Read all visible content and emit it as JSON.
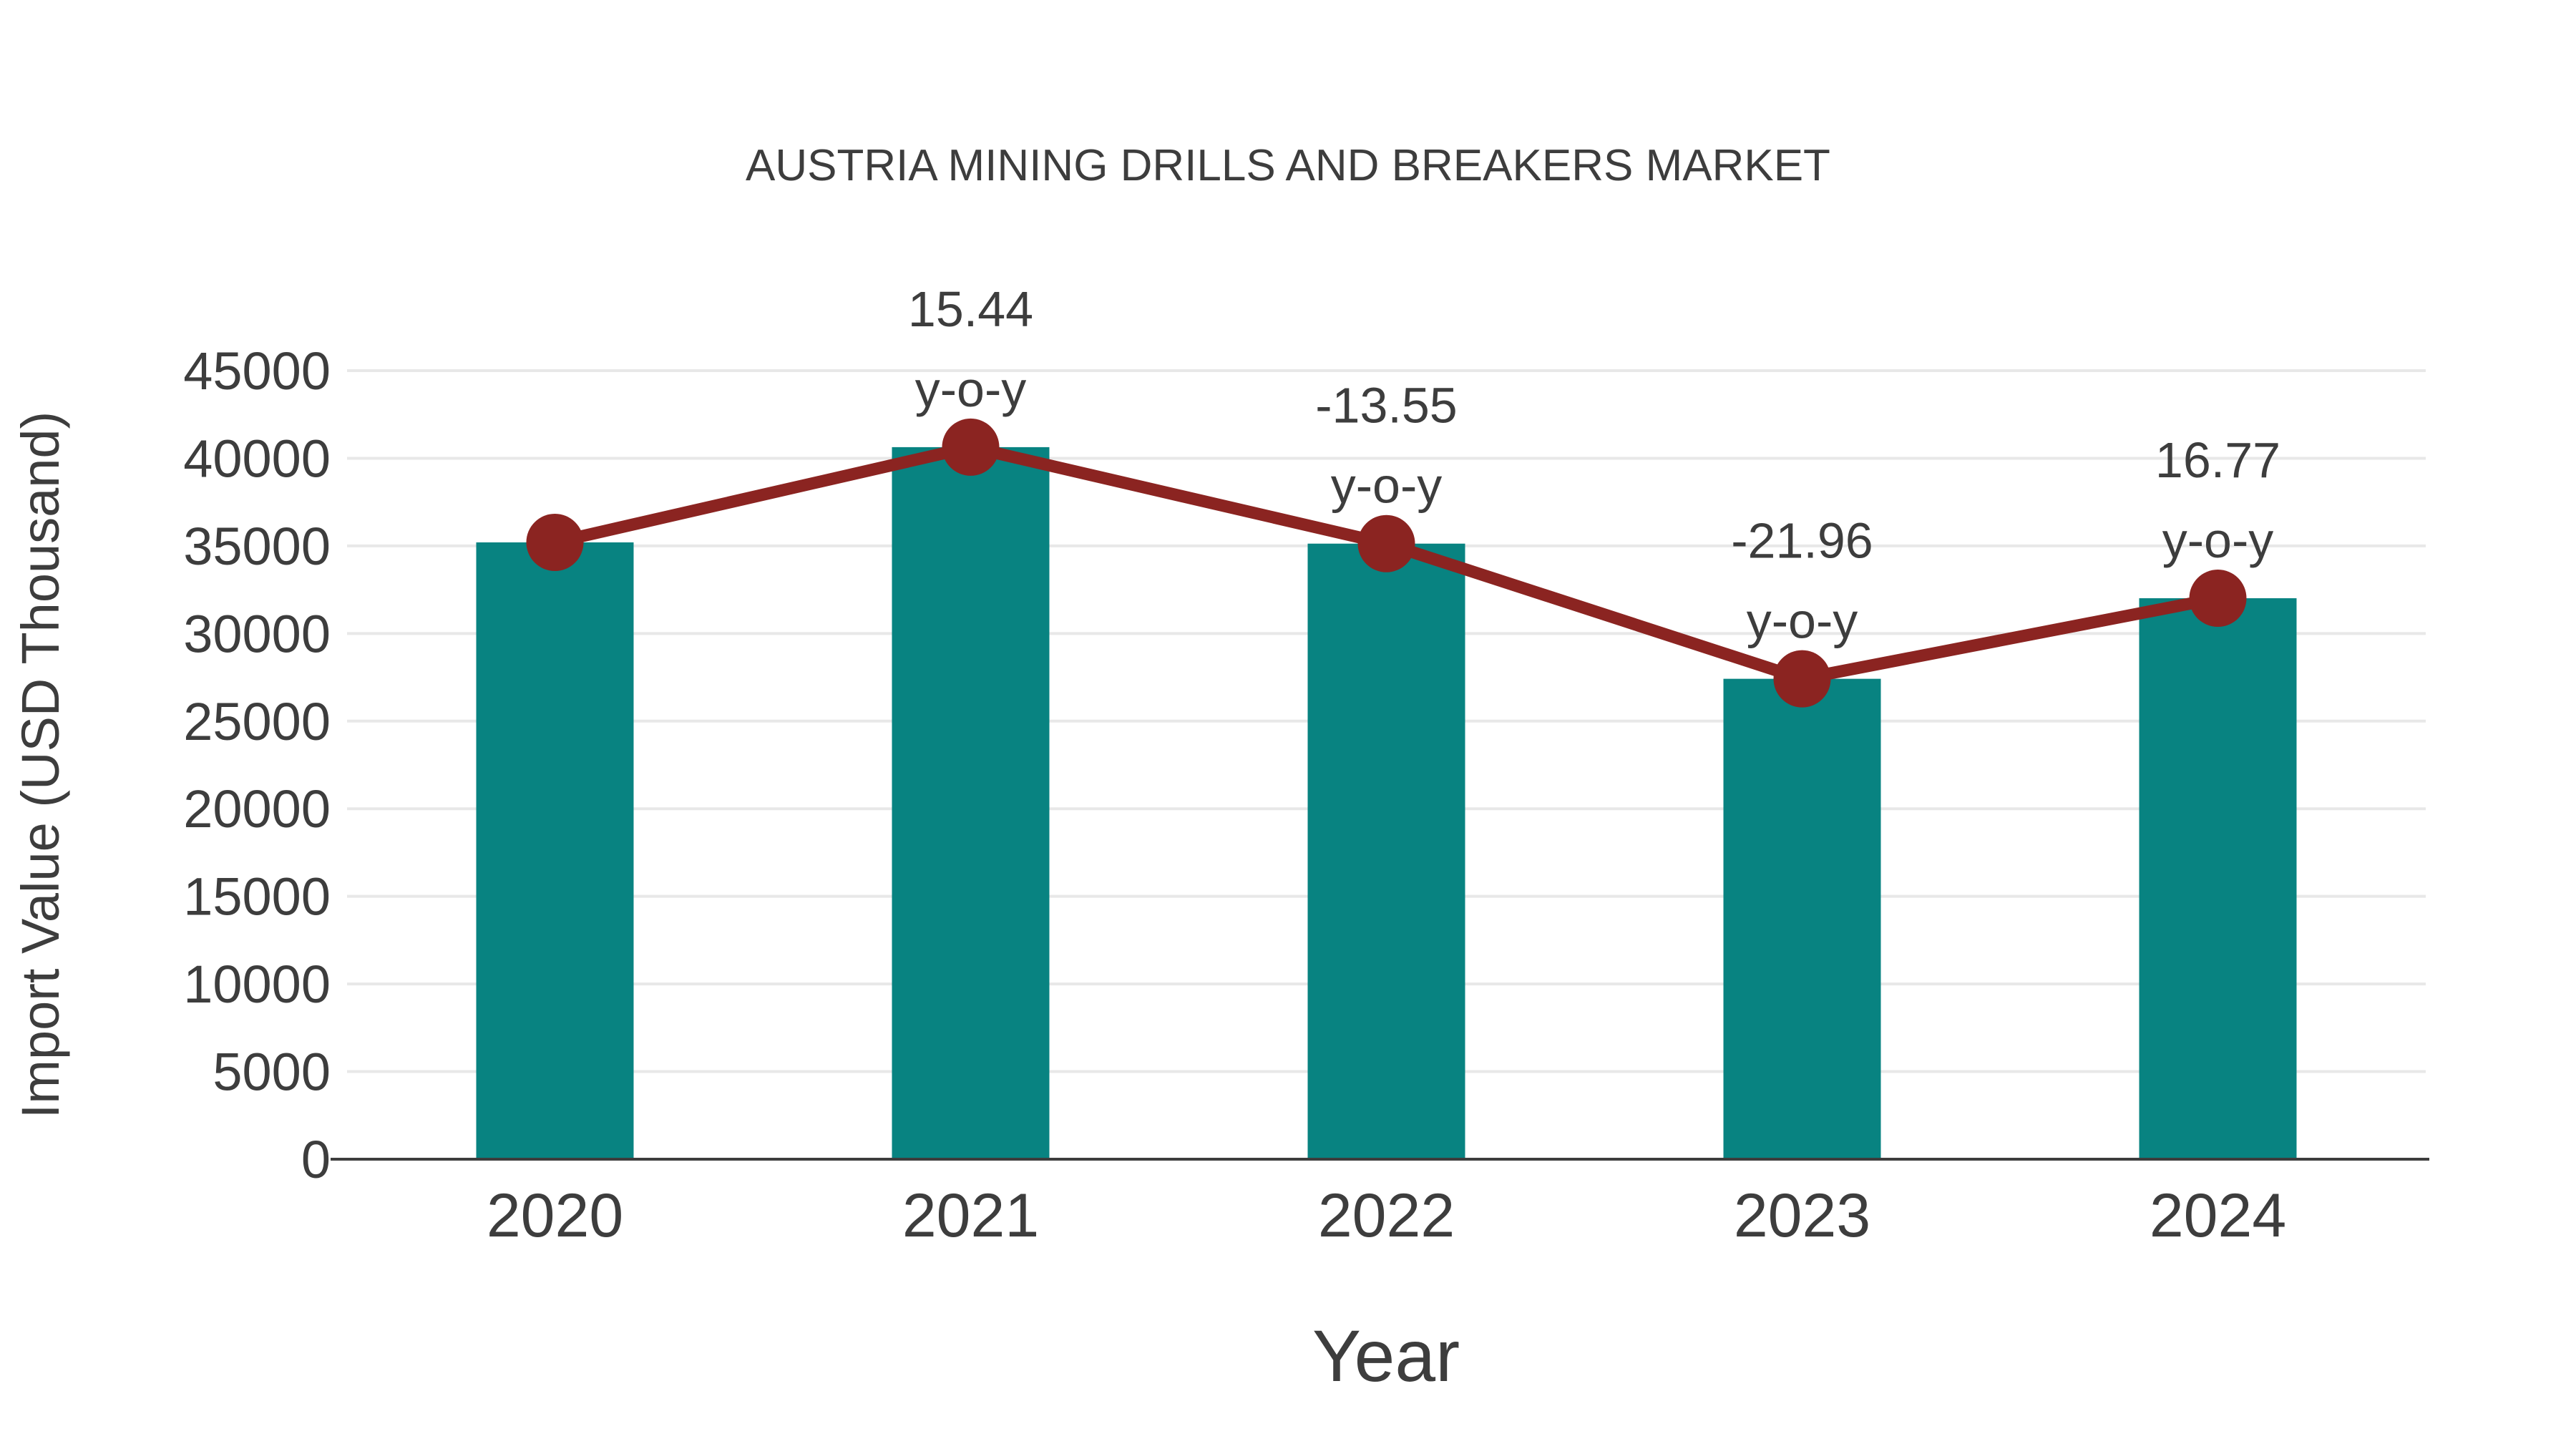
{
  "title": "AUSTRIA MINING DRILLS AND BREAKERS MARKET",
  "chart_data": {
    "type": "bar",
    "title": "AUSTRIA MINING DRILLS AND BREAKERS MARKET",
    "xlabel": "Year",
    "ylabel": "Import Value (USD Thousand)",
    "categories": [
      "2020",
      "2021",
      "2022",
      "2023",
      "2024"
    ],
    "series": [
      {
        "name": "Import Value bars",
        "type": "bar",
        "values": [
          35200,
          40635,
          35129,
          27415,
          32013
        ]
      },
      {
        "name": "Import Value trend line",
        "type": "line",
        "values": [
          35200,
          40635,
          35129,
          27415,
          32013
        ]
      }
    ],
    "annotations": [
      {
        "category": "2021",
        "value": "15.44",
        "label": "y-o-y"
      },
      {
        "category": "2022",
        "value": "-13.55",
        "label": "y-o-y"
      },
      {
        "category": "2023",
        "value": "-21.96",
        "label": "y-o-y"
      },
      {
        "category": "2024",
        "value": "16.77",
        "label": "y-o-y"
      }
    ],
    "ylim": [
      0,
      45000
    ],
    "ytick_step": 5000,
    "yticks": [
      "0",
      "5000",
      "10000",
      "15000",
      "20000",
      "25000",
      "30000",
      "35000",
      "40000",
      "45000"
    ],
    "grid": true,
    "legend": "none",
    "colors": {
      "bar": "#088381",
      "line": "#8b2421",
      "marker": "#8b2421",
      "text": "#3d3d3d",
      "grid": "#e8e8e8",
      "axis": "#3d3d3d",
      "background": "#ffffff"
    }
  }
}
